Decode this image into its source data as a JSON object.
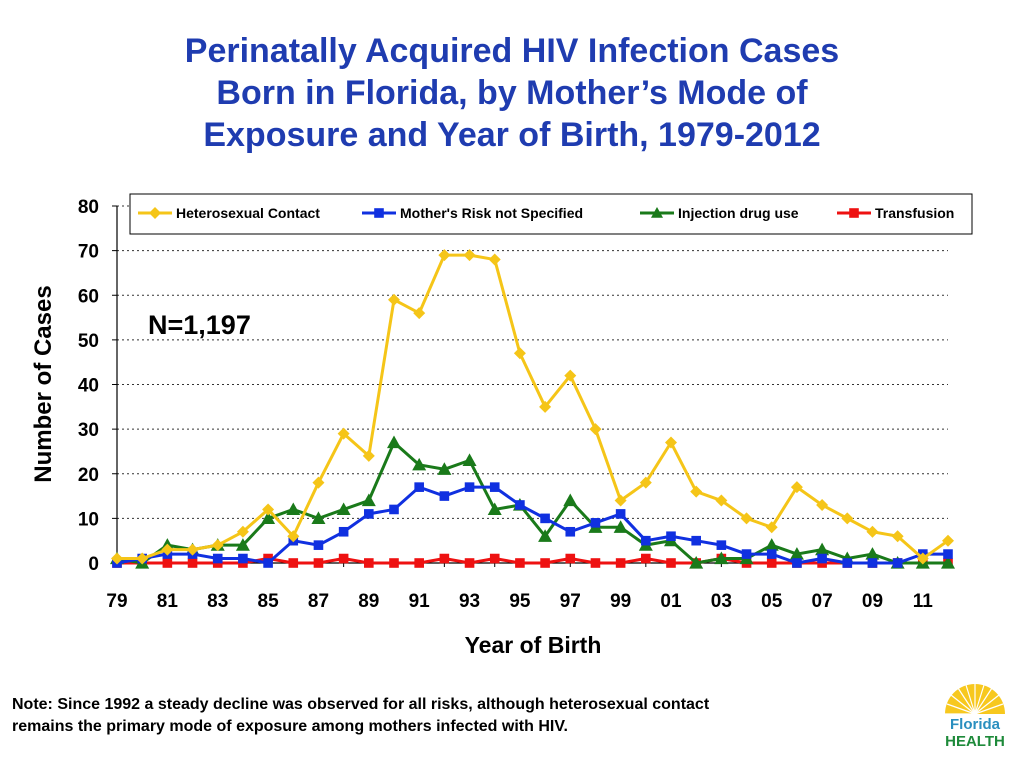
{
  "title_lines": [
    "Perinatally Acquired HIV Infection Cases",
    "Born in Florida, by Mother’s Mode of",
    "Exposure and Year of Birth, 1979-2012"
  ],
  "note_lines": [
    "Note: Since 1992 a steady decline was observed for all risks, although heterosexual contact",
    "remains the primary mode of exposure among mothers infected with HIV."
  ],
  "logo": {
    "line1": "Florida",
    "line2": "HEALTH"
  },
  "colors": {
    "title": "#1f3cb0"
  },
  "chart_data": {
    "type": "line",
    "title": "Perinatally Acquired HIV Infection Cases Born in Florida, by Mother’s Mode of Exposure and Year of Birth, 1979-2012",
    "xlabel": "Year of Birth",
    "ylabel": "Number of Cases",
    "ylim": [
      0,
      80
    ],
    "yticks": [
      0,
      10,
      20,
      30,
      40,
      50,
      60,
      70,
      80
    ],
    "grid": "horizontal dotted",
    "legend_position": "top",
    "annotation": "N=1,197",
    "x": [
      1979,
      1980,
      1981,
      1982,
      1983,
      1984,
      1985,
      1986,
      1987,
      1988,
      1989,
      1990,
      1991,
      1992,
      1993,
      1994,
      1995,
      1996,
      1997,
      1998,
      1999,
      2000,
      2001,
      2002,
      2003,
      2004,
      2005,
      2006,
      2007,
      2008,
      2009,
      2010,
      2011,
      2012
    ],
    "tick_labels": [
      "79",
      "81",
      "83",
      "85",
      "87",
      "89",
      "91",
      "93",
      "95",
      "97",
      "99",
      "01",
      "03",
      "05",
      "07",
      "09",
      "11"
    ],
    "series": [
      {
        "name": "Heterosexual Contact",
        "color": "#f5c518",
        "marker": "diamond",
        "values": [
          1,
          1,
          3,
          3,
          4,
          7,
          12,
          6,
          18,
          29,
          24,
          59,
          56,
          69,
          69,
          68,
          47,
          35,
          42,
          30,
          14,
          18,
          27,
          16,
          14,
          10,
          8,
          17,
          13,
          10,
          7,
          6,
          1,
          5
        ]
      },
      {
        "name": "Mother's Risk not Specified",
        "color": "#1030e0",
        "marker": "square",
        "values": [
          0,
          1,
          2,
          2,
          1,
          1,
          0,
          5,
          4,
          7,
          11,
          12,
          17,
          15,
          17,
          17,
          13,
          10,
          7,
          9,
          11,
          5,
          6,
          5,
          4,
          2,
          2,
          0,
          1,
          0,
          0,
          0,
          2,
          2
        ]
      },
      {
        "name": "Injection drug use",
        "color": "#1a7a1a",
        "marker": "triangle",
        "values": [
          1,
          0,
          4,
          3,
          4,
          4,
          10,
          12,
          10,
          12,
          14,
          27,
          22,
          21,
          23,
          12,
          13,
          6,
          14,
          8,
          8,
          4,
          5,
          0,
          1,
          1,
          4,
          2,
          3,
          1,
          2,
          0,
          0,
          0
        ]
      },
      {
        "name": "Transfusion",
        "color": "#ee1111",
        "marker": "square",
        "values": [
          0,
          0,
          0,
          0,
          0,
          0,
          1,
          0,
          0,
          1,
          0,
          0,
          0,
          1,
          0,
          1,
          0,
          0,
          1,
          0,
          0,
          1,
          0,
          0,
          1,
          0,
          0,
          0,
          0,
          0,
          0,
          0,
          0,
          0
        ]
      }
    ]
  }
}
